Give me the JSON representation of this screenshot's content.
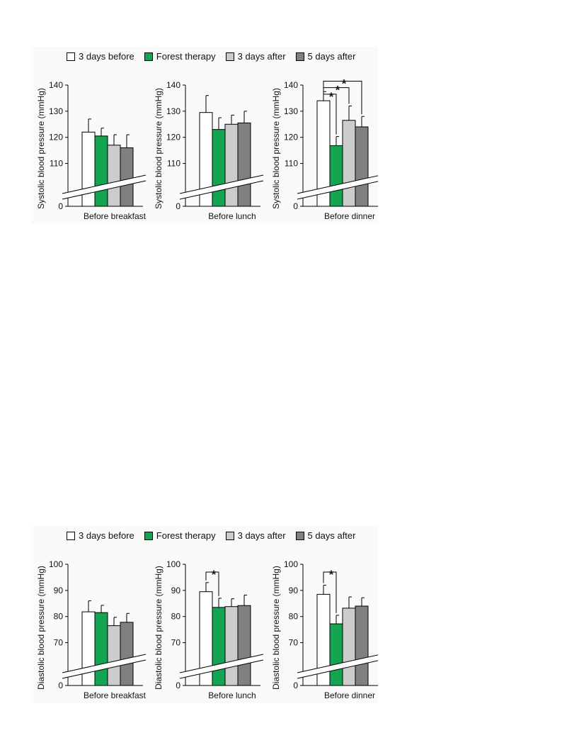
{
  "colors": {
    "3_days_before": "#ffffff",
    "forest_therapy": "#13a552",
    "3_days_after": "#cccccc",
    "5_days_after": "#808080"
  },
  "legend": [
    "3 days before",
    "Forest therapy",
    "3 days after",
    "5 days after"
  ],
  "chart_data": [
    {
      "type": "bar",
      "panel": "systolic",
      "title": "Before breakfast",
      "ylabel": "Systolic blood pressure (mmHg)",
      "yticks": [
        0,
        110,
        120,
        130,
        140
      ],
      "ylim": [
        0,
        140
      ],
      "axis_break": [
        0,
        105
      ],
      "series": [
        {
          "name": "3 days before",
          "value": 122,
          "error": 5
        },
        {
          "name": "Forest therapy",
          "value": 120.5,
          "error": 3
        },
        {
          "name": "3 days after",
          "value": 117,
          "error": 4
        },
        {
          "name": "5 days after",
          "value": 116,
          "error": 5
        }
      ],
      "significance": []
    },
    {
      "type": "bar",
      "panel": "systolic",
      "title": "Before lunch",
      "ylabel": "Systolic blood pressure (mmHg)",
      "yticks": [
        0,
        110,
        120,
        130,
        140
      ],
      "ylim": [
        0,
        140
      ],
      "axis_break": [
        0,
        105
      ],
      "series": [
        {
          "name": "3 days before",
          "value": 129.5,
          "error": 6.5
        },
        {
          "name": "Forest therapy",
          "value": 123,
          "error": 4.5
        },
        {
          "name": "3 days after",
          "value": 125,
          "error": 3.5
        },
        {
          "name": "5 days after",
          "value": 125.5,
          "error": 4.5
        }
      ],
      "significance": []
    },
    {
      "type": "bar",
      "panel": "systolic",
      "title": "Before dinner",
      "ylabel": "Systolic blood pressure (mmHg)",
      "yticks": [
        0,
        110,
        120,
        130,
        140
      ],
      "ylim": [
        0,
        140
      ],
      "axis_break": [
        0,
        105
      ],
      "series": [
        {
          "name": "3 days before",
          "value": 134,
          "error": 3.5
        },
        {
          "name": "Forest therapy",
          "value": 116.8,
          "error": 3.5
        },
        {
          "name": "3 days after",
          "value": 126.5,
          "error": 5.5
        },
        {
          "name": "5 days after",
          "value": 124,
          "error": 4
        }
      ],
      "significance": [
        {
          "from": 0,
          "to": 1,
          "label": "*",
          "level": 136.5
        },
        {
          "from": 0,
          "to": 2,
          "label": "*",
          "level": 139
        },
        {
          "from": 0,
          "to": 3,
          "label": "*",
          "level": 141.5
        }
      ]
    },
    {
      "type": "bar",
      "panel": "diastolic",
      "title": "Before breakfast",
      "ylabel": "Diastolic blood pressure (mmHg)",
      "yticks": [
        0,
        70,
        80,
        90,
        100
      ],
      "ylim": [
        0,
        100
      ],
      "axis_break": [
        0,
        65
      ],
      "series": [
        {
          "name": "3 days before",
          "value": 81.8,
          "error": 4.2
        },
        {
          "name": "Forest therapy",
          "value": 81.5,
          "error": 2.8
        },
        {
          "name": "3 days after",
          "value": 76.5,
          "error": 3.2
        },
        {
          "name": "5 days after",
          "value": 77.8,
          "error": 3.4
        }
      ],
      "significance": []
    },
    {
      "type": "bar",
      "panel": "diastolic",
      "title": "Before lunch",
      "ylabel": "Diastolic blood pressure (mmHg)",
      "yticks": [
        0,
        70,
        80,
        90,
        100
      ],
      "ylim": [
        0,
        100
      ],
      "axis_break": [
        0,
        65
      ],
      "series": [
        {
          "name": "3 days before",
          "value": 89.5,
          "error": 3.5
        },
        {
          "name": "Forest therapy",
          "value": 83.5,
          "error": 3.5
        },
        {
          "name": "3 days after",
          "value": 83.8,
          "error": 3
        },
        {
          "name": "5 days after",
          "value": 84.2,
          "error": 4
        }
      ],
      "significance": [
        {
          "from": 0,
          "to": 1,
          "label": "*",
          "level": 97
        }
      ]
    },
    {
      "type": "bar",
      "panel": "diastolic",
      "title": "Before dinner",
      "ylabel": "Diastolic blood pressure (mmHg)",
      "yticks": [
        0,
        70,
        80,
        90,
        100
      ],
      "ylim": [
        0,
        100
      ],
      "axis_break": [
        0,
        65
      ],
      "series": [
        {
          "name": "3 days before",
          "value": 88.5,
          "error": 3.5
        },
        {
          "name": "Forest therapy",
          "value": 77.2,
          "error": 3.3
        },
        {
          "name": "3 days after",
          "value": 83.2,
          "error": 4.3
        },
        {
          "name": "5 days after",
          "value": 84,
          "error": 3.2
        }
      ],
      "significance": [
        {
          "from": 0,
          "to": 1,
          "label": "*",
          "level": 97
        }
      ]
    }
  ]
}
